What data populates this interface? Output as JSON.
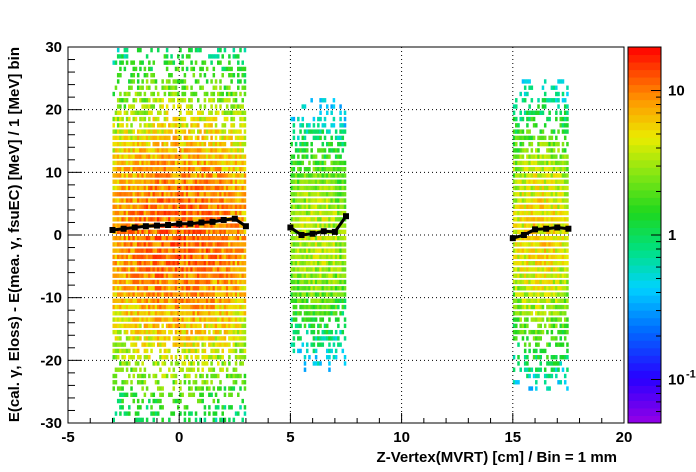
{
  "chart_data": {
    "type": "heatmap",
    "xlabel": "Z-Vertex(MVRT) [cm] / Bin = 1 mm",
    "ylabel": "E(cal. γ, Eloss) - E(mea. γ, fsuEC) [MeV] / 1 [MeV] bin",
    "xlim": [
      -5,
      20
    ],
    "ylim": [
      -30,
      30
    ],
    "x_ticks": [
      "-5",
      "0",
      "5",
      "10",
      "15",
      "20"
    ],
    "y_ticks": [
      "-30",
      "-20",
      "-10",
      "0",
      "10",
      "20",
      "30"
    ],
    "grid": true,
    "colorbar": {
      "scale": "log",
      "range": [
        0.05,
        20
      ],
      "ticks": [
        "10",
        "1",
        "10"
      ],
      "tick_exponents": [
        "",
        "",
        "-1"
      ],
      "tick_values": [
        10,
        1,
        0.1
      ]
    },
    "bands": [
      {
        "x_range": [
          -3.0,
          3.0
        ],
        "y_range": [
          -30,
          30
        ],
        "peak_z": 12
      },
      {
        "x_range": [
          5.0,
          7.5
        ],
        "y_range": [
          -22,
          22
        ],
        "peak_z": 4
      },
      {
        "x_range": [
          15.0,
          17.5
        ],
        "y_range": [
          -25,
          25
        ],
        "peak_z": 6
      }
    ],
    "profile_series": [
      {
        "x": [
          -3.0,
          -2.5,
          -2.0,
          -1.5,
          -1.0,
          -0.5,
          0.0,
          0.5,
          1.0,
          1.5,
          2.0,
          2.5,
          3.0
        ],
        "y": [
          0.8,
          1.0,
          1.2,
          1.4,
          1.5,
          1.6,
          1.8,
          1.8,
          2.0,
          2.1,
          2.4,
          2.6,
          1.4
        ]
      },
      {
        "x": [
          5.0,
          5.5,
          6.0,
          6.5,
          7.0,
          7.5
        ],
        "y": [
          1.2,
          0.0,
          0.2,
          0.6,
          0.5,
          3.0
        ]
      },
      {
        "x": [
          15.0,
          15.5,
          16.0,
          16.5,
          17.0,
          17.5
        ],
        "y": [
          -0.5,
          0.0,
          0.9,
          1.0,
          1.2,
          1.0
        ]
      }
    ]
  }
}
